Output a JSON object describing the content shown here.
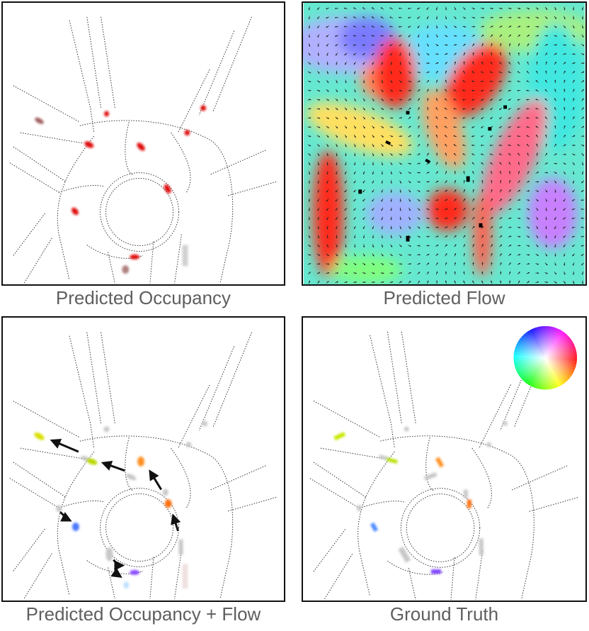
{
  "panels": [
    {
      "caption": "Predicted Occupancy"
    },
    {
      "caption": "Predicted Flow"
    },
    {
      "caption": "Predicted Occupancy + Flow"
    },
    {
      "caption": "Ground Truth"
    }
  ],
  "colors": {
    "occupancy": "#e01010",
    "arrow": "#111111",
    "road": "#333333",
    "caption": "#5f5f5f"
  }
}
